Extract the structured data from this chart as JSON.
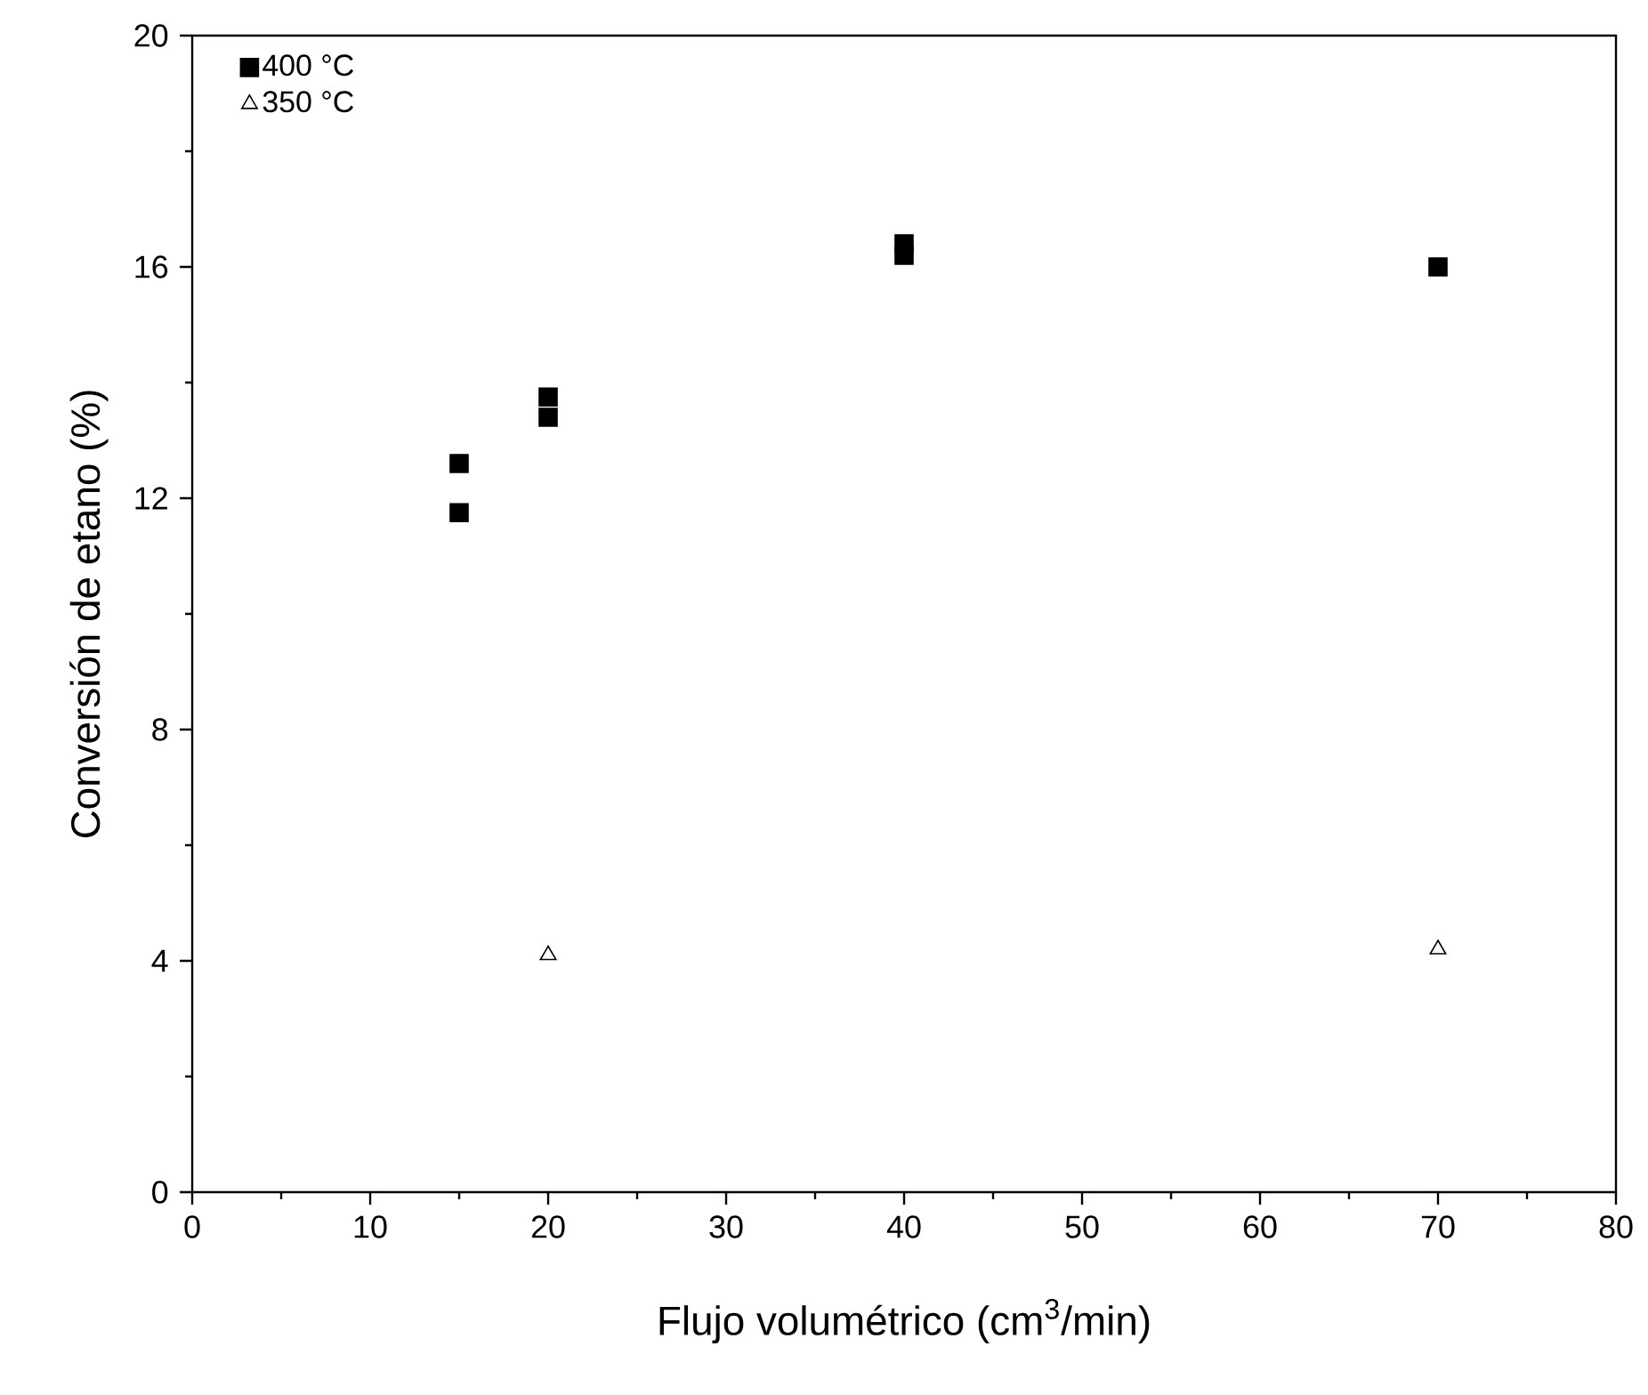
{
  "chart_data": {
    "type": "scatter",
    "xlabel": "Flujo volumétrico (cm$^{3}$/min)",
    "ylabel": "Conversión de etano (%)",
    "xlim": [
      0,
      80
    ],
    "xticks": [
      0,
      10,
      20,
      30,
      40,
      50,
      60,
      70,
      80
    ],
    "ylim": [
      0,
      20
    ],
    "yticks": [
      0,
      4,
      8,
      12,
      16,
      20
    ],
    "legend": "top left",
    "grid": false,
    "series": [
      {
        "name": "400 °C",
        "color": "#000000",
        "marker": "square",
        "x": [
          15,
          15,
          20,
          20,
          40,
          40,
          70
        ],
        "values": [
          12.6,
          11.75,
          13.75,
          13.4,
          16.4,
          16.2,
          16.0
        ]
      },
      {
        "name": "350 °C",
        "color": "#000000",
        "marker": "triangle",
        "x": [
          20,
          70
        ],
        "values": [
          4.1,
          4.2
        ]
      }
    ]
  }
}
